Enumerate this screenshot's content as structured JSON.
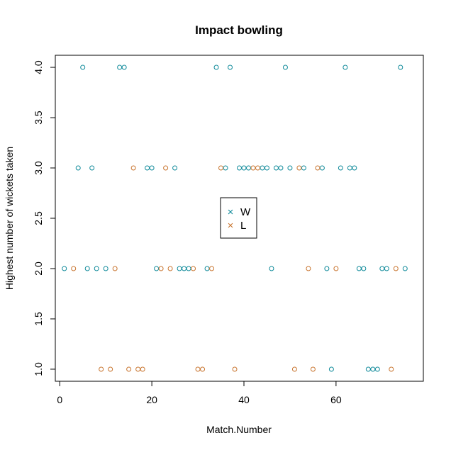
{
  "chart_data": {
    "type": "scatter",
    "title": "Impact bowling",
    "xlabel": "Match.Number",
    "ylabel": "Highest number of wickets taken",
    "xlim": [
      -0.96,
      78.96
    ],
    "ylim": [
      0.88,
      4.12
    ],
    "xticks": [
      0,
      20,
      40,
      60
    ],
    "yticks": [
      1.0,
      1.5,
      2.0,
      2.5,
      3.0,
      3.5,
      4.0
    ],
    "ytick_labels": [
      "1.0",
      "1.5",
      "2.0",
      "2.5",
      "3.0",
      "3.5",
      "4.0"
    ],
    "grid": false,
    "legend_position": "center",
    "legend_marker": "×",
    "series": [
      {
        "name": "W",
        "color": "#0f8a9a",
        "points": [
          [
            1,
            2
          ],
          [
            4,
            3
          ],
          [
            5,
            4
          ],
          [
            6,
            2
          ],
          [
            7,
            3
          ],
          [
            8,
            2
          ],
          [
            10,
            2
          ],
          [
            13,
            4
          ],
          [
            14,
            4
          ],
          [
            19,
            3
          ],
          [
            20,
            3
          ],
          [
            21,
            2
          ],
          [
            25,
            3
          ],
          [
            26,
            2
          ],
          [
            27,
            2
          ],
          [
            28,
            2
          ],
          [
            32,
            2
          ],
          [
            34,
            4
          ],
          [
            36,
            3
          ],
          [
            37,
            4
          ],
          [
            39,
            3
          ],
          [
            40,
            3
          ],
          [
            41,
            3
          ],
          [
            44,
            3
          ],
          [
            45,
            3
          ],
          [
            46,
            2
          ],
          [
            47,
            3
          ],
          [
            48,
            3
          ],
          [
            49,
            4
          ],
          [
            50,
            3
          ],
          [
            53,
            3
          ],
          [
            57,
            3
          ],
          [
            58,
            2
          ],
          [
            59,
            1
          ],
          [
            61,
            3
          ],
          [
            62,
            4
          ],
          [
            63,
            3
          ],
          [
            64,
            3
          ],
          [
            65,
            2
          ],
          [
            66,
            2
          ],
          [
            67,
            1
          ],
          [
            68,
            1
          ],
          [
            69,
            1
          ],
          [
            70,
            2
          ],
          [
            71,
            2
          ],
          [
            74,
            4
          ],
          [
            75,
            2
          ]
        ]
      },
      {
        "name": "L",
        "color": "#c8742e",
        "points": [
          [
            3,
            2
          ],
          [
            9,
            1
          ],
          [
            11,
            1
          ],
          [
            12,
            2
          ],
          [
            15,
            1
          ],
          [
            16,
            3
          ],
          [
            17,
            1
          ],
          [
            18,
            1
          ],
          [
            22,
            2
          ],
          [
            23,
            3
          ],
          [
            24,
            2
          ],
          [
            29,
            2
          ],
          [
            30,
            1
          ],
          [
            31,
            1
          ],
          [
            33,
            2
          ],
          [
            35,
            3
          ],
          [
            38,
            1
          ],
          [
            42,
            3
          ],
          [
            43,
            3
          ],
          [
            51,
            1
          ],
          [
            52,
            3
          ],
          [
            54,
            2
          ],
          [
            55,
            1
          ],
          [
            56,
            3
          ],
          [
            60,
            2
          ],
          [
            72,
            1
          ],
          [
            73,
            2
          ]
        ]
      }
    ]
  }
}
